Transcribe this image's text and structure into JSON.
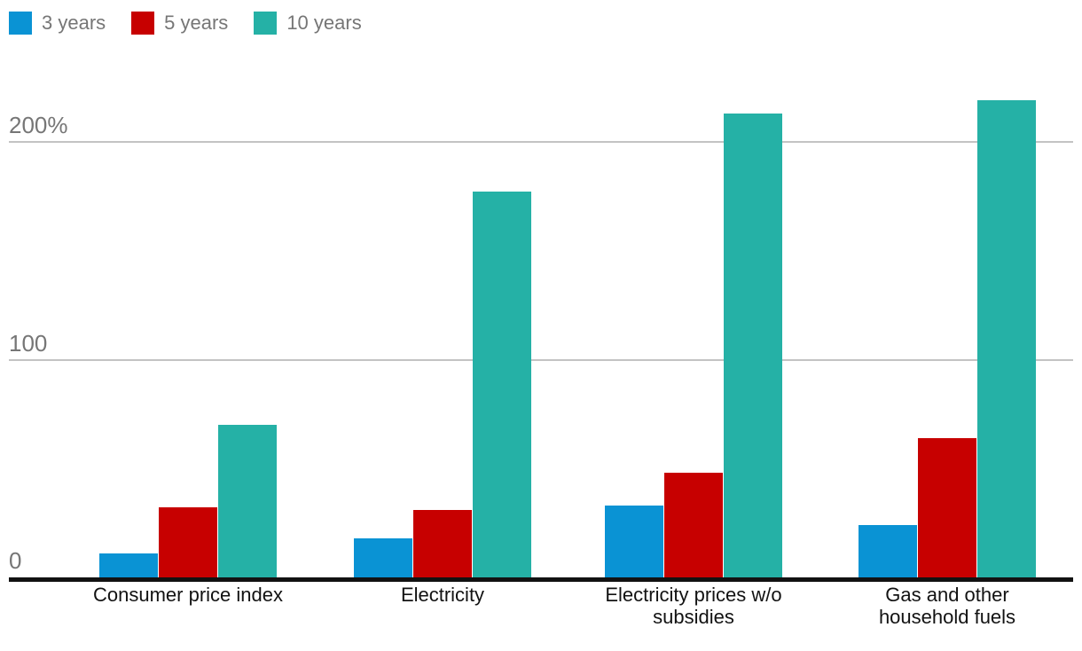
{
  "legend": {
    "items": [
      {
        "label": "3 years",
        "color": "#0a93d4"
      },
      {
        "label": "5 years",
        "color": "#c70000"
      },
      {
        "label": "10 years",
        "color": "#25b1a6"
      }
    ]
  },
  "chart_data": {
    "type": "bar",
    "title": "",
    "xlabel": "",
    "ylabel": "",
    "unit": "%",
    "categories": [
      "Consumer price index",
      "Electricity",
      "Electricity prices w/o subsidies",
      "Gas and other household fuels"
    ],
    "category_label_lines": [
      [
        "Consumer price index"
      ],
      [
        "Electricity"
      ],
      [
        "Electricity prices w/o",
        "subsidies"
      ],
      [
        "Gas and other",
        "household fuels"
      ]
    ],
    "series": [
      {
        "name": "3 years",
        "color": "#0a93d4",
        "values": [
          11,
          18,
          33,
          24
        ]
      },
      {
        "name": "5 years",
        "color": "#c70000",
        "values": [
          32,
          31,
          48,
          64
        ]
      },
      {
        "name": "10 years",
        "color": "#25b1a6",
        "values": [
          70,
          177,
          213,
          219
        ]
      }
    ],
    "yticks": [
      {
        "label": "0",
        "value": 0
      },
      {
        "label": "100",
        "value": 100
      },
      {
        "label": "200%",
        "value": 200
      }
    ],
    "ylim": [
      0,
      229
    ],
    "grid": "horizontal",
    "legend_position": "top-left",
    "colors": {
      "axis": "#121212",
      "gridline": "#c3c3c3",
      "tick_text": "#767676",
      "category_text": "#121212",
      "legend_text": "#767676",
      "background": "#ffffff"
    }
  }
}
